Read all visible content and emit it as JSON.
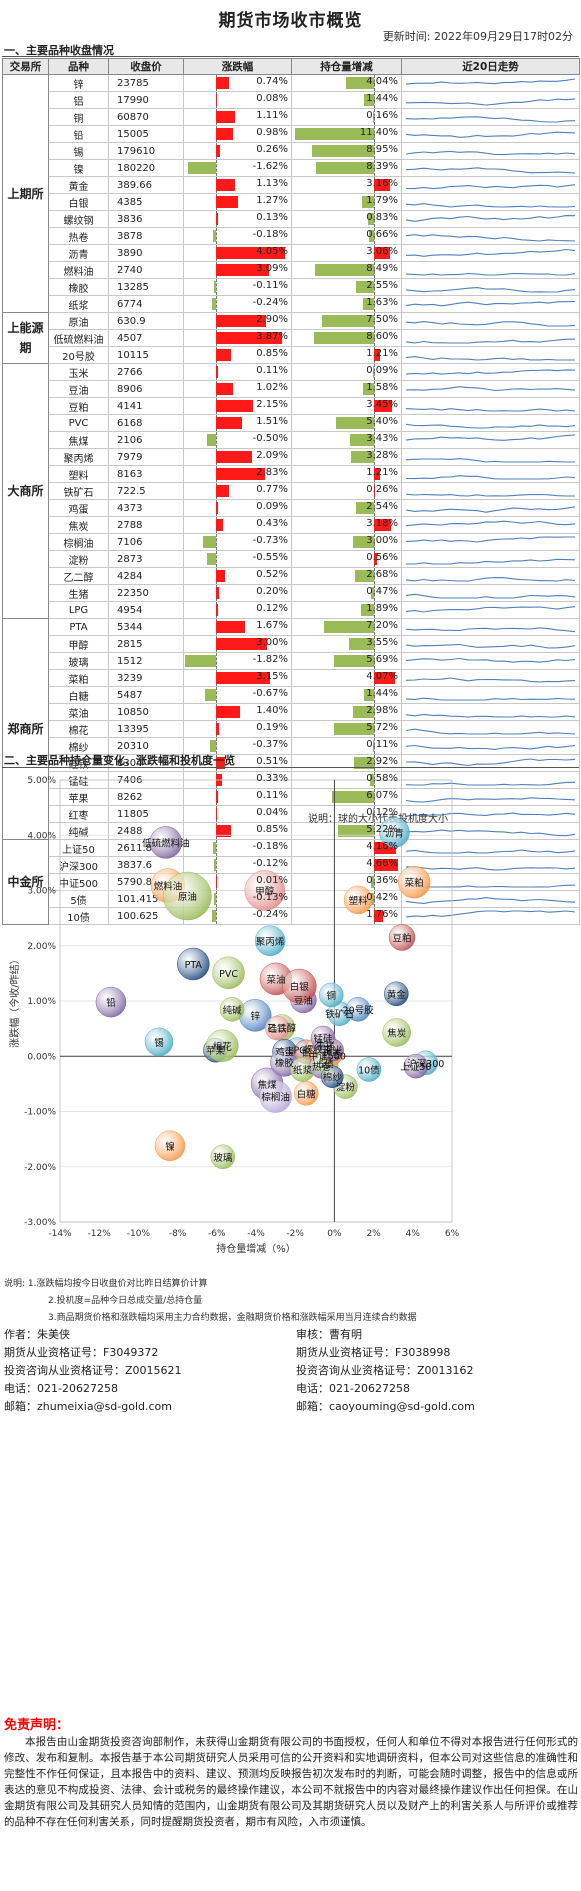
{
  "header": {
    "title": "期货市场收市概览",
    "update_time": "更新时间:  2022年09月29日17时02分"
  },
  "section1": {
    "title": "一、主要品种收盘情况",
    "columns": [
      "交易所",
      "品种",
      "收盘价",
      "涨跌幅",
      "持仓量增减",
      "近20日走势"
    ]
  },
  "exchanges": [
    {
      "name": "上期所",
      "rows": [
        {
          "name": "锌",
          "close": "23785",
          "chg": 0.74,
          "chg_text": "0.74%",
          "oi": 4.04,
          "oi_text": "4.04%"
        },
        {
          "name": "铝",
          "close": "17990",
          "chg": 0.08,
          "chg_text": "0.08%",
          "oi": 1.44,
          "oi_text": "1.44%"
        },
        {
          "name": "铜",
          "close": "60870",
          "chg": 1.11,
          "chg_text": "1.11%",
          "oi": 0.16,
          "oi_text": "0.16%"
        },
        {
          "name": "铅",
          "close": "15005",
          "chg": 0.98,
          "chg_text": "0.98%",
          "oi": 11.4,
          "oi_text": "11.40%"
        },
        {
          "name": "锡",
          "close": "179610",
          "chg": 0.26,
          "chg_text": "0.26%",
          "oi": 8.95,
          "oi_text": "8.95%"
        },
        {
          "name": "镍",
          "close": "180220",
          "chg": -1.62,
          "chg_text": "-1.62%",
          "oi": 8.39,
          "oi_text": "8.39%"
        },
        {
          "name": "黄金",
          "close": "389.66",
          "chg": 1.13,
          "chg_text": "1.13%",
          "oi": -3.16,
          "oi_text": "3.16%"
        },
        {
          "name": "白银",
          "close": "4385",
          "chg": 1.27,
          "chg_text": "1.27%",
          "oi": 1.79,
          "oi_text": "1.79%"
        },
        {
          "name": "螺纹钢",
          "close": "3836",
          "chg": 0.13,
          "chg_text": "0.13%",
          "oi": 0.83,
          "oi_text": "0.83%"
        },
        {
          "name": "热卷",
          "close": "3878",
          "chg": -0.18,
          "chg_text": "-0.18%",
          "oi": 0.66,
          "oi_text": "0.66%"
        },
        {
          "name": "沥青",
          "close": "3890",
          "chg": 4.05,
          "chg_text": "4.05%",
          "oi": -3.06,
          "oi_text": "3.06%"
        },
        {
          "name": "燃料油",
          "close": "2740",
          "chg": 3.09,
          "chg_text": "3.09%",
          "oi": 8.49,
          "oi_text": "8.49%"
        },
        {
          "name": "橡胶",
          "close": "13285",
          "chg": -0.11,
          "chg_text": "-0.11%",
          "oi": 2.55,
          "oi_text": "2.55%"
        },
        {
          "name": "纸浆",
          "close": "6774",
          "chg": -0.24,
          "chg_text": "-0.24%",
          "oi": 1.63,
          "oi_text": "1.63%"
        }
      ]
    },
    {
      "name": "上能源期",
      "rows": [
        {
          "name": "原油",
          "close": "630.9",
          "chg": 2.9,
          "chg_text": "2.90%",
          "oi": 7.5,
          "oi_text": "7.50%"
        },
        {
          "name": "低硫燃料油",
          "close": "4507",
          "chg": 3.87,
          "chg_text": "3.87%",
          "oi": 8.6,
          "oi_text": "8.60%"
        },
        {
          "name": "20号胶",
          "close": "10115",
          "chg": 0.85,
          "chg_text": "0.85%",
          "oi": -1.21,
          "oi_text": "1.21%"
        }
      ]
    },
    {
      "name": "大商所",
      "rows": [
        {
          "name": "玉米",
          "close": "2766",
          "chg": 0.11,
          "chg_text": "0.11%",
          "oi": 0.09,
          "oi_text": "0.09%"
        },
        {
          "name": "豆油",
          "close": "8906",
          "chg": 1.02,
          "chg_text": "1.02%",
          "oi": 1.58,
          "oi_text": "1.58%"
        },
        {
          "name": "豆粕",
          "close": "4141",
          "chg": 2.15,
          "chg_text": "2.15%",
          "oi": -3.45,
          "oi_text": "3.45%"
        },
        {
          "name": "PVC",
          "close": "6168",
          "chg": 1.51,
          "chg_text": "1.51%",
          "oi": 5.4,
          "oi_text": "5.40%"
        },
        {
          "name": "焦煤",
          "close": "2106",
          "chg": -0.5,
          "chg_text": "-0.50%",
          "oi": 3.43,
          "oi_text": "3.43%"
        },
        {
          "name": "聚丙烯",
          "close": "7979",
          "chg": 2.09,
          "chg_text": "2.09%",
          "oi": 3.28,
          "oi_text": "3.28%"
        },
        {
          "name": "塑料",
          "close": "8163",
          "chg": 2.83,
          "chg_text": "2.83%",
          "oi": -1.21,
          "oi_text": "1.21%"
        },
        {
          "name": "铁矿石",
          "close": "722.5",
          "chg": 0.77,
          "chg_text": "0.77%",
          "oi": -0.26,
          "oi_text": "0.26%"
        },
        {
          "name": "鸡蛋",
          "close": "4373",
          "chg": 0.09,
          "chg_text": "0.09%",
          "oi": 2.54,
          "oi_text": "2.54%"
        },
        {
          "name": "焦炭",
          "close": "2788",
          "chg": 0.43,
          "chg_text": "0.43%",
          "oi": -3.18,
          "oi_text": "3.18%"
        },
        {
          "name": "棕榈油",
          "close": "7106",
          "chg": -0.73,
          "chg_text": "-0.73%",
          "oi": 3.0,
          "oi_text": "3.00%"
        },
        {
          "name": "淀粉",
          "close": "2873",
          "chg": -0.55,
          "chg_text": "-0.55%",
          "oi": -0.56,
          "oi_text": "0.56%"
        },
        {
          "name": "乙二醇",
          "close": "4284",
          "chg": 0.52,
          "chg_text": "0.52%",
          "oi": 2.68,
          "oi_text": "2.68%"
        },
        {
          "name": "生猪",
          "close": "22350",
          "chg": 0.2,
          "chg_text": "0.20%",
          "oi": 0.47,
          "oi_text": "0.47%"
        },
        {
          "name": "LPG",
          "close": "4954",
          "chg": 0.12,
          "chg_text": "0.12%",
          "oi": 1.89,
          "oi_text": "1.89%"
        }
      ]
    },
    {
      "name": "郑商所",
      "rows": [
        {
          "name": "PTA",
          "close": "5344",
          "chg": 1.67,
          "chg_text": "1.67%",
          "oi": 7.2,
          "oi_text": "7.20%"
        },
        {
          "name": "甲醇",
          "close": "2815",
          "chg": 3.0,
          "chg_text": "3.00%",
          "oi": 3.55,
          "oi_text": "3.55%"
        },
        {
          "name": "玻璃",
          "close": "1512",
          "chg": -1.82,
          "chg_text": "-1.82%",
          "oi": 5.69,
          "oi_text": "5.69%"
        },
        {
          "name": "菜粕",
          "close": "3239",
          "chg": 3.15,
          "chg_text": "3.15%",
          "oi": -4.07,
          "oi_text": "4.07%"
        },
        {
          "name": "白糖",
          "close": "5487",
          "chg": -0.67,
          "chg_text": "-0.67%",
          "oi": 1.44,
          "oi_text": "1.44%"
        },
        {
          "name": "菜油",
          "close": "10850",
          "chg": 1.4,
          "chg_text": "1.40%",
          "oi": 2.98,
          "oi_text": "2.98%"
        },
        {
          "name": "棉花",
          "close": "13395",
          "chg": 0.19,
          "chg_text": "0.19%",
          "oi": 5.72,
          "oi_text": "5.72%"
        },
        {
          "name": "棉纱",
          "close": "20310",
          "chg": -0.37,
          "chg_text": "-0.37%",
          "oi": 0.11,
          "oi_text": "0.11%"
        },
        {
          "name": "硅铁",
          "close": "8304",
          "chg": 0.51,
          "chg_text": "0.51%",
          "oi": 2.92,
          "oi_text": "2.92%"
        },
        {
          "name": "锰硅",
          "close": "7406",
          "chg": 0.33,
          "chg_text": "0.33%",
          "oi": 0.58,
          "oi_text": "0.58%"
        },
        {
          "name": "苹果",
          "close": "8262",
          "chg": 0.11,
          "chg_text": "0.11%",
          "oi": 6.07,
          "oi_text": "6.07%"
        },
        {
          "name": "红枣",
          "close": "11805",
          "chg": 0.04,
          "chg_text": "0.04%",
          "oi": 0.12,
          "oi_text": "0.12%"
        },
        {
          "name": "纯碱",
          "close": "2488",
          "chg": 0.85,
          "chg_text": "0.85%",
          "oi": 5.22,
          "oi_text": "5.22%"
        }
      ]
    },
    {
      "name": "中金所",
      "rows": [
        {
          "name": "上证50",
          "close": "2611.8",
          "chg": -0.18,
          "chg_text": "-0.18%",
          "oi": -4.16,
          "oi_text": "4.16%"
        },
        {
          "name": "沪深300",
          "close": "3837.6",
          "chg": -0.12,
          "chg_text": "-0.12%",
          "oi": -4.66,
          "oi_text": "4.66%"
        },
        {
          "name": "中证500",
          "close": "5790.8",
          "chg": 0.01,
          "chg_text": "0.01%",
          "oi": 0.36,
          "oi_text": "0.36%"
        },
        {
          "name": "5债",
          "close": "101.415",
          "chg": -0.13,
          "chg_text": "-0.13%",
          "oi": 0.42,
          "oi_text": "0.42%"
        },
        {
          "name": "10债",
          "close": "100.625",
          "chg": -0.24,
          "chg_text": "-0.24%",
          "oi": -1.76,
          "oi_text": "1.76%"
        }
      ]
    }
  ],
  "section2": {
    "title": "二、主要品种持仓量变化、涨跌幅和投机度一览"
  },
  "chart_data": {
    "type": "scatter",
    "subtitle": "说明：球的大小代表投机度大小",
    "xlabel": "持仓量增减（%）",
    "ylabel": "涨跌幅（今收/昨结）",
    "xlim": [
      -14,
      6
    ],
    "ylim": [
      -3,
      5
    ],
    "xticks": [
      "-14%",
      "-12%",
      "-10%",
      "-8%",
      "-6%",
      "-4%",
      "-2%",
      "0%",
      "2%",
      "4%",
      "6%"
    ],
    "yticks": [
      "-3.00%",
      "-2.00%",
      "-1.00%",
      "0.00%",
      "1.00%",
      "2.00%",
      "3.00%",
      "4.00%",
      "5.00%"
    ],
    "points": [
      {
        "name": "低硫燃料油",
        "x": -8.6,
        "y": 3.87,
        "size": 1.0,
        "color": "#7e649e"
      },
      {
        "name": "燃料油",
        "x": -8.49,
        "y": 3.09,
        "size": 1.1,
        "color": "#f79646"
      },
      {
        "name": "原油",
        "x": -7.5,
        "y": 2.9,
        "size": 1.8,
        "color": "#9bbb59"
      },
      {
        "name": "沥青",
        "x": 3.06,
        "y": 4.05,
        "size": 0.9,
        "color": "#4bacc6"
      },
      {
        "name": "菜粕",
        "x": 4.07,
        "y": 3.15,
        "size": 1.0,
        "color": "#f79646"
      },
      {
        "name": "甲醇",
        "x": -3.55,
        "y": 3.0,
        "size": 1.4,
        "color": "#e38b8b"
      },
      {
        "name": "塑料",
        "x": 1.21,
        "y": 2.83,
        "size": 0.8,
        "color": "#f79646"
      },
      {
        "name": "豆粕",
        "x": 3.45,
        "y": 2.15,
        "size": 0.7,
        "color": "#c0504d"
      },
      {
        "name": "聚丙烯",
        "x": -3.28,
        "y": 2.09,
        "size": 0.9,
        "color": "#4bacc6"
      },
      {
        "name": "PTA",
        "x": -7.2,
        "y": 1.67,
        "size": 1.0,
        "color": "#1f497d"
      },
      {
        "name": "PVC",
        "x": -5.4,
        "y": 1.51,
        "size": 1.0,
        "color": "#9bbb59"
      },
      {
        "name": "铅",
        "x": -11.4,
        "y": 0.98,
        "size": 0.9,
        "color": "#8064a2"
      },
      {
        "name": "菜油",
        "x": -2.98,
        "y": 1.4,
        "size": 1.0,
        "color": "#c0504d"
      },
      {
        "name": "豆油",
        "x": -1.58,
        "y": 1.02,
        "size": 0.7,
        "color": "#8064a2"
      },
      {
        "name": "黄金",
        "x": 3.16,
        "y": 1.13,
        "size": 0.6,
        "color": "#1f497d"
      },
      {
        "name": "白银",
        "x": -1.79,
        "y": 1.27,
        "size": 1.1,
        "color": "#c0504d"
      },
      {
        "name": "沪深300",
        "x": 4.66,
        "y": -0.12,
        "size": 0.6,
        "color": "#4bacc6"
      },
      {
        "name": "锌",
        "x": -4.04,
        "y": 0.74,
        "size": 1.0,
        "color": "#4f81bd"
      },
      {
        "name": "铁矿石",
        "x": 0.26,
        "y": 0.77,
        "size": 0.6,
        "color": "#4bacc6"
      },
      {
        "name": "焦炭",
        "x": 3.18,
        "y": 0.43,
        "size": 0.8,
        "color": "#9bbb59"
      },
      {
        "name": "锡",
        "x": -8.95,
        "y": 0.26,
        "size": 0.8,
        "color": "#4bacc6"
      },
      {
        "name": "苹果",
        "x": -6.07,
        "y": 0.11,
        "size": 0.6,
        "color": "#1f497d"
      },
      {
        "name": "纯碱",
        "x": -5.22,
        "y": 0.85,
        "size": 0.6,
        "color": "#9bbb59"
      },
      {
        "name": "上证50",
        "x": 4.16,
        "y": -0.18,
        "size": 0.6,
        "color": "#8064a2"
      },
      {
        "name": "棉花",
        "x": -5.72,
        "y": 0.19,
        "size": 1.0,
        "color": "#9bbb59"
      },
      {
        "name": "镍",
        "x": -8.39,
        "y": -1.62,
        "size": 0.9,
        "color": "#f79646"
      },
      {
        "name": "玻璃",
        "x": -5.69,
        "y": -1.82,
        "size": 0.6,
        "color": "#9bbb59"
      },
      {
        "name": "焦煤",
        "x": -3.43,
        "y": -0.5,
        "size": 1.0,
        "color": "#8064a2"
      },
      {
        "name": "棕榈油",
        "x": -3.0,
        "y": -0.73,
        "size": 1.0,
        "color": "#b4a7d6"
      },
      {
        "name": "白糖",
        "x": -1.44,
        "y": -0.67,
        "size": 0.6,
        "color": "#f79646"
      },
      {
        "name": "10债",
        "x": 1.76,
        "y": -0.24,
        "size": 0.6,
        "color": "#4bacc6"
      },
      {
        "name": "淀粉",
        "x": 0.56,
        "y": -0.55,
        "size": 0.6,
        "color": "#9bbb59"
      },
      {
        "name": "乙二醇",
        "x": -2.68,
        "y": 0.52,
        "size": 0.7,
        "color": "#9bbb59"
      },
      {
        "name": "硅铁",
        "x": -2.92,
        "y": 0.51,
        "size": 0.6,
        "color": "#e38b8b"
      },
      {
        "name": "LPG",
        "x": -1.89,
        "y": 0.12,
        "size": 0.6,
        "color": "#4bacc6"
      },
      {
        "name": "鸡蛋",
        "x": -2.54,
        "y": 0.09,
        "size": 0.6,
        "color": "#1f497d"
      },
      {
        "name": "橡胶",
        "x": -2.55,
        "y": -0.11,
        "size": 0.8,
        "color": "#8064a2"
      },
      {
        "name": "铝",
        "x": -1.44,
        "y": 0.08,
        "size": 0.6,
        "color": "#c0504d"
      },
      {
        "name": "纸浆",
        "x": -1.63,
        "y": -0.24,
        "size": 0.6,
        "color": "#9bbb59"
      },
      {
        "name": "铜",
        "x": -0.16,
        "y": 1.11,
        "size": 0.6,
        "color": "#4bacc6"
      },
      {
        "name": "螺纹钢",
        "x": -0.83,
        "y": 0.13,
        "size": 0.6,
        "color": "#f79646"
      },
      {
        "name": "热卷",
        "x": -0.66,
        "y": -0.18,
        "size": 0.6,
        "color": "#8064a2"
      },
      {
        "name": "20号胶",
        "x": 1.21,
        "y": 0.85,
        "size": 0.6,
        "color": "#4f81bd"
      },
      {
        "name": "生猪",
        "x": -0.47,
        "y": 0.2,
        "size": 0.6,
        "color": "#c0504d"
      },
      {
        "name": "锰硅",
        "x": -0.58,
        "y": 0.33,
        "size": 0.6,
        "color": "#8064a2"
      },
      {
        "name": "中证500",
        "x": -0.36,
        "y": 0.01,
        "size": 0.6,
        "color": "#4bacc6"
      },
      {
        "name": "5债",
        "x": -0.42,
        "y": -0.13,
        "size": 0.6,
        "color": "#9bbb59"
      },
      {
        "name": "红枣",
        "x": -0.12,
        "y": 0.04,
        "size": 0.5,
        "color": "#f79646"
      },
      {
        "name": "棉纱",
        "x": -0.11,
        "y": -0.37,
        "size": 0.5,
        "color": "#1f497d"
      },
      {
        "name": "玉米",
        "x": -0.09,
        "y": 0.11,
        "size": 0.5,
        "color": "#8064a2"
      }
    ]
  },
  "notes": [
    "说明:   1.涨跌幅均按今日收盘价对比昨日结算价计算",
    "2.投机度=品种今日总成交量/总持仓量",
    "3.商品期货价格和涨跌幅均采用主力合约数据，金融期货价格和涨跌幅采用当月连续合约数据"
  ],
  "authors": {
    "left": {
      "line1": "作者：朱美侠",
      "line2": "期货从业资格证号：F3049372",
      "line3": "投资咨询从业资格证号：Z0015621",
      "line4": "电话：021-20627258",
      "line5": "邮箱：zhumeixia@sd-gold.com"
    },
    "right": {
      "line1": "审核：曹有明",
      "line2": "期货从业资格证号：F3038998",
      "line3": "投资咨询从业资格证号：Z0013162",
      "line4": "电话：021-20627258",
      "line5": "邮箱：caoyouming@sd-gold.com"
    }
  },
  "disclaimer": {
    "title": "免责声明：",
    "text": "本报告由山金期货投资咨询部制作，未获得山金期货有限公司的书面授权，任何人和单位不得对本报告进行任何形式的修改、发布和复制。本报告基于本公司期货研究人员采用可信的公开资料和实地调研资料，但本公司对这些信息的准确性和完整性不作任何保证，且本报告中的资料、建议、预测均反映报告初次发布时的判断，可能会随时调整，报告中的信息或所表达的意见不构成投资、法律、会计或税务的最终操作建议，本公司不就报告中的内容对最终操作建议作出任何担保。在山金期货有限公司及其研究人员知情的范围内，山金期货有限公司及其期货研究人员以及财产上的利害关系人与所评价或推荐的品种不存在任何利害关系，同时提醒期货投资者，期市有风险，入市须谨慎。"
  },
  "colors": {
    "up": "#ff1a1a",
    "down": "#9bbb59",
    "spark": "#4f81bd"
  }
}
